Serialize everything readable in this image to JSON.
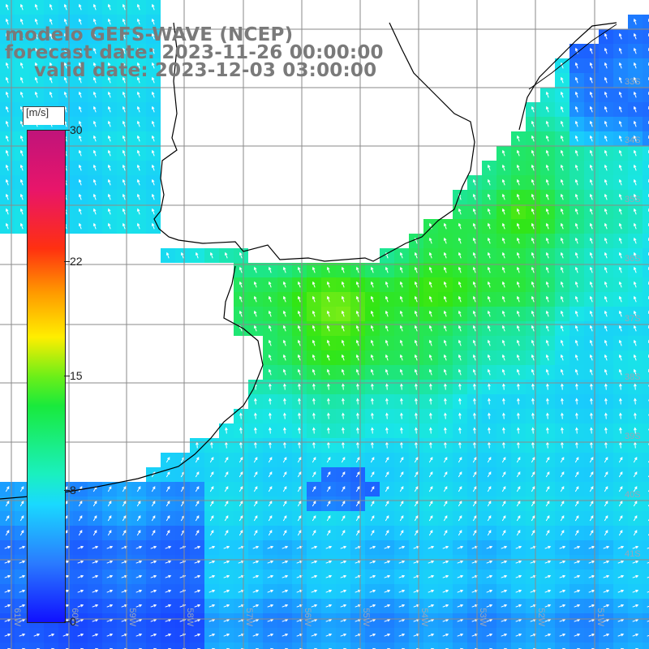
{
  "title": {
    "line1": "modelo GEFS-WAVE (NCEP)",
    "line2": "forecast date: 2023-11-26 00:00:00",
    "line3": "valid date: 2023-12-03 03:00:00"
  },
  "colorbar": {
    "unit": "[m/s]",
    "ticks": [
      "30",
      "22",
      "15",
      "8",
      "0"
    ],
    "tick_values": [
      30,
      22,
      15,
      8,
      0
    ],
    "min": 0,
    "max": 30
  },
  "axes": {
    "lat_labels": [
      "33S",
      "34S",
      "35S",
      "36S",
      "37S",
      "38S",
      "39S",
      "40S",
      "41S"
    ],
    "lon_labels": [
      "61W",
      "60W",
      "59W",
      "58W",
      "57W",
      "56W",
      "55W",
      "54W",
      "53W",
      "52W",
      "51W"
    ]
  },
  "colors": {
    "ocean_blue": "#1a5cff",
    "cyan": "#19e0f5",
    "green": "#30e622",
    "yellow_green": "#9cef18",
    "land": "#ffffff",
    "grid": "#808080",
    "coast": "#000000",
    "title_gray": "#7a7a7a"
  }
}
